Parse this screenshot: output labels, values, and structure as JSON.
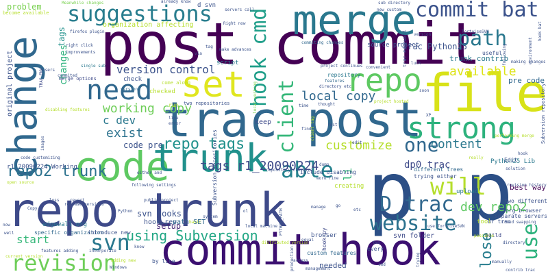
{
  "words": [
    {
      "text": "post commit",
      "color": "#440154"
    },
    {
      "text": "commit hook",
      "color": "#3b0f70"
    },
    {
      "text": "repo trunk",
      "color": "#3e4a89"
    },
    {
      "text": "trac post",
      "color": "#31688e"
    },
    {
      "text": "p p",
      "color": "#2c4f86"
    },
    {
      "text": "file",
      "color": "#d8e219"
    },
    {
      "text": "change",
      "color": "#30688e"
    },
    {
      "text": "merge",
      "color": "#2a788e"
    },
    {
      "text": "code",
      "color": "#5ec962"
    },
    {
      "text": "trunk",
      "color": "#21918c"
    },
    {
      "text": "suggestions",
      "color": "#287d8e"
    },
    {
      "text": "commit bat",
      "color": "#3b528b"
    },
    {
      "text": "set",
      "color": "#e0e61f"
    },
    {
      "text": "repo",
      "color": "#5ec962"
    },
    {
      "text": "strong",
      "color": "#2db27d"
    },
    {
      "text": "need",
      "color": "#31688e"
    },
    {
      "text": "website",
      "color": "#2c728e"
    },
    {
      "text": "revision",
      "color": "#6ece58"
    },
    {
      "text": "D trac",
      "color": "#31688e"
    },
    {
      "text": "hook cmd",
      "color": "#1f9e89"
    },
    {
      "text": "path",
      "color": "#2a788e"
    },
    {
      "text": "client",
      "color": "#35b779"
    },
    {
      "text": "svn",
      "color": "#2a788e"
    },
    {
      "text": "able",
      "color": "#26828e"
    },
    {
      "text": "will",
      "color": "#b5de2b"
    },
    {
      "text": "one",
      "color": "#31688e"
    },
    {
      "text": "use",
      "color": "#2db27d"
    },
    {
      "text": "lose",
      "color": "#287d8e"
    },
    {
      "text": "repo2 trunk",
      "color": "#2c728e"
    },
    {
      "text": "repo tags",
      "color": "#21918c"
    },
    {
      "text": "using Subversion",
      "color": "#22a785"
    },
    {
      "text": "working copy",
      "color": "#6ece58"
    },
    {
      "text": "local copy",
      "color": "#31688e"
    },
    {
      "text": "customize",
      "color": "#b5de2b"
    },
    {
      "text": "tags r1_20090224",
      "color": "#3e4a89"
    },
    {
      "text": "content",
      "color": "#2a788e"
    },
    {
      "text": "version control",
      "color": "#3b528b"
    },
    {
      "text": "available",
      "color": "#dde318"
    },
    {
      "text": "dev repo2",
      "color": "#5ec962"
    },
    {
      "text": "start",
      "color": "#35b779"
    },
    {
      "text": "c dev",
      "color": "#2a788e"
    },
    {
      "text": "exist",
      "color": "#2c728e"
    },
    {
      "text": "trac Python25",
      "color": "#3b528b"
    },
    {
      "text": "trunk contrib",
      "color": "#2a788e"
    },
    {
      "text": "code pre",
      "color": "#3b528b"
    },
    {
      "text": "dp0 trac",
      "color": "#3e4a89"
    },
    {
      "text": "tags",
      "color": "#21918c"
    },
    {
      "text": "changes",
      "color": "#2db27d"
    },
    {
      "text": "li",
      "color": "#35b779"
    },
    {
      "text": "pre code",
      "color": "#31688e"
    },
    {
      "text": "svn hooks",
      "color": "#3b528b"
    },
    {
      "text": "problem",
      "color": "#7ad151"
    },
    {
      "text": "Python25 Lib",
      "color": "#2a788e"
    },
    {
      "text": "organization affecting",
      "color": "#b5de2b"
    },
    {
      "text": "script",
      "color": "#2a788e"
    },
    {
      "text": "keep",
      "color": "#3e4a89"
    },
    {
      "text": "hook rev",
      "color": "#3b528b"
    },
    {
      "text": "path SET",
      "color": "#31688e"
    },
    {
      "text": "setup",
      "color": "#482878"
    },
    {
      "text": "svn folder",
      "color": "#3e4a89"
    },
    {
      "text": "edgewall org",
      "color": "#2a788e"
    },
    {
      "text": "specific organization",
      "color": "#31688e"
    },
    {
      "text": "introduce new",
      "color": "#3b528b"
    },
    {
      "text": "local working",
      "color": "#7ad151"
    },
    {
      "text": "source project",
      "color": "#3b528b"
    },
    {
      "text": "best way",
      "color": "#440154"
    },
    {
      "text": "separate servers",
      "color": "#3b528b"
    },
    {
      "text": "two different",
      "color": "#3b528b"
    },
    {
      "text": "repository",
      "color": "#2a788e"
    },
    {
      "text": "trying either",
      "color": "#3b528b"
    },
    {
      "text": "different trees",
      "color": "#31688e"
    },
    {
      "text": "include disabling",
      "color": "#3b528b"
    },
    {
      "text": "Subversion repositories",
      "color": "#3b528b"
    },
    {
      "text": "build",
      "color": "#3e4a89"
    },
    {
      "text": "upload",
      "color": "#2a788e"
    },
    {
      "text": "creating",
      "color": "#b5de2b"
    },
    {
      "text": "custom features",
      "color": "#31688e"
    },
    {
      "text": "needed",
      "color": "#3b528b"
    },
    {
      "text": "hook py",
      "color": "#3e4a89"
    },
    {
      "text": "browser",
      "color": "#3b528b"
    },
    {
      "text": "org browser",
      "color": "#3b528b"
    },
    {
      "text": "tried swapping",
      "color": "#3b528b"
    },
    {
      "text": "revision history",
      "color": "#3b528b"
    },
    {
      "text": "Edit",
      "color": "#3b528b"
    },
    {
      "text": "tool",
      "color": "#b5de2b"
    },
    {
      "text": "br trac",
      "color": "#3b528b"
    },
    {
      "text": "checked",
      "color": "#b5de2b"
    },
    {
      "text": "check",
      "color": "#3b528b"
    },
    {
      "text": "come along",
      "color": "#b5de2b"
    },
    {
      "text": "two repositories",
      "color": "#3b528b"
    },
    {
      "text": "version",
      "color": "#31688e"
    },
    {
      "text": "single sub",
      "color": "#2a788e"
    },
    {
      "text": "merge options",
      "color": "#3e4a89"
    },
    {
      "text": "improvements",
      "color": "#3b528b"
    },
    {
      "text": "right click",
      "color": "#3b528b"
    },
    {
      "text": "firefox plugin",
      "color": "#3b528b"
    },
    {
      "text": "Meanwhile changes",
      "color": "#7ad151"
    },
    {
      "text": "become available",
      "color": "#b5de2b"
    },
    {
      "text": "already know",
      "color": "#3b528b"
    },
    {
      "text": "servers call",
      "color": "#3b528b"
    },
    {
      "text": "sub directory",
      "color": "#3b528b"
    },
    {
      "text": "new custom",
      "color": "#3b528b"
    },
    {
      "text": "commiting changes",
      "color": "#31688e"
    },
    {
      "text": "d svn",
      "color": "#3b528b"
    },
    {
      "text": "Right now",
      "color": "#3b528b"
    },
    {
      "text": "via",
      "color": "#3b528b"
    },
    {
      "text": "make advances",
      "color": "#3b528b"
    },
    {
      "text": "project continues",
      "color": "#3b528b"
    },
    {
      "text": "convenient",
      "color": "#3b528b"
    },
    {
      "text": "features",
      "color": "#31688e"
    },
    {
      "text": "directory etc",
      "color": "#3b528b"
    },
    {
      "text": "thought",
      "color": "#3b528b"
    },
    {
      "text": "useful",
      "color": "#3b528b"
    },
    {
      "text": "following",
      "color": "#3b528b"
    },
    {
      "text": "making changes",
      "color": "#3b528b"
    },
    {
      "text": "hook bat",
      "color": "#3b528b"
    },
    {
      "text": "project hosted",
      "color": "#b5de2b"
    },
    {
      "text": "soon",
      "color": "#3b528b"
    },
    {
      "text": "luck",
      "color": "#3b528b"
    },
    {
      "text": "users",
      "color": "#3b528b"
    },
    {
      "text": "TRAC_ENV",
      "color": "#3e4a89"
    },
    {
      "text": "commited",
      "color": "#3b528b"
    },
    {
      "text": "original project",
      "color": "#3b528b"
    },
    {
      "text": "r1_20090224 Working",
      "color": "#3b528b"
    },
    {
      "text": "code customizing",
      "color": "#3b528b"
    },
    {
      "text": "images",
      "color": "#3b528b"
    },
    {
      "text": "open source",
      "color": "#b5de2b"
    },
    {
      "text": "release versions",
      "color": "#3b528b"
    },
    {
      "text": "loss",
      "color": "#3b528b"
    },
    {
      "text": "revert",
      "color": "#3b528b"
    },
    {
      "text": "Copy c",
      "color": "#3b528b"
    },
    {
      "text": "well",
      "color": "#3b528b"
    },
    {
      "text": "now",
      "color": "#3b528b"
    },
    {
      "text": "current version",
      "color": "#b5de2b"
    },
    {
      "text": "features adding",
      "color": "#3b528b"
    },
    {
      "text": "incorporate",
      "color": "#3b528b"
    },
    {
      "text": "adding new",
      "color": "#b5de2b"
    },
    {
      "text": "by line",
      "color": "#3b528b"
    },
    {
      "text": "Windows",
      "color": "#3b528b"
    },
    {
      "text": "know",
      "color": "#3b528b"
    },
    {
      "text": "system",
      "color": "#3b528b"
    },
    {
      "text": "li ol",
      "color": "#3b528b"
    },
    {
      "text": "basic",
      "color": "#b5de2b"
    },
    {
      "text": "local machine",
      "color": "#3b528b"
    },
    {
      "text": "distributed version",
      "color": "#b5de2b"
    },
    {
      "text": "PYTHON_PATH",
      "color": "#3b528b"
    },
    {
      "text": "production",
      "color": "#3b528b"
    },
    {
      "text": "access",
      "color": "#3b528b"
    },
    {
      "text": "management",
      "color": "#3b528b"
    },
    {
      "text": "equal",
      "color": "#3b528b"
    },
    {
      "text": "every",
      "color": "#3b528b"
    },
    {
      "text": "two",
      "color": "#3b528b"
    },
    {
      "text": "cmd",
      "color": "#3b528b"
    },
    {
      "text": "trying",
      "color": "#3b528b"
    },
    {
      "text": "possible",
      "color": "#b5de2b"
    },
    {
      "text": "contrib trac",
      "color": "#3b528b"
    },
    {
      "text": "manually",
      "color": "#3b528b"
    },
    {
      "text": "use TortoiseSVN",
      "color": "#3b528b"
    },
    {
      "text": "directory",
      "color": "#3b528b"
    },
    {
      "text": "go",
      "color": "#3b528b"
    },
    {
      "text": "manage",
      "color": "#3b528b"
    },
    {
      "text": "run",
      "color": "#b5de2b"
    },
    {
      "text": "line",
      "color": "#3b528b"
    },
    {
      "text": "error",
      "color": "#3b528b"
    },
    {
      "text": "either and",
      "color": "#3b528b"
    },
    {
      "text": "following settings",
      "color": "#3b528b"
    },
    {
      "text": "public project",
      "color": "#3b528b"
    },
    {
      "text": "Python",
      "color": "#3b528b"
    },
    {
      "text": "client tag",
      "color": "#b5de2b"
    },
    {
      "text": "find",
      "color": "#3b528b"
    },
    {
      "text": "rest",
      "color": "#3b528b"
    },
    {
      "text": "etc",
      "color": "#3b528b"
    },
    {
      "text": "environment",
      "color": "#3b528b"
    },
    {
      "text": "TortoiseSVN",
      "color": "#3b528b"
    },
    {
      "text": "Subversion repository",
      "color": "#3b528b"
    },
    {
      "text": "performing merge",
      "color": "#b5de2b"
    },
    {
      "text": "really",
      "color": "#b5de2b"
    },
    {
      "text": "solution",
      "color": "#3b528b"
    },
    {
      "text": "hook",
      "color": "#3b528b"
    },
    {
      "text": "time",
      "color": "#3b528b"
    },
    {
      "text": "disabling features",
      "color": "#b5de2b"
    },
    {
      "text": "tag",
      "color": "#3b528b"
    },
    {
      "text": "work fine",
      "color": "#3b528b"
    },
    {
      "text": "dump",
      "color": "#3b528b"
    },
    {
      "text": "edit",
      "color": "#3b528b"
    },
    {
      "text": "repository checking",
      "color": "#3b528b"
    },
    {
      "text": "trac edgewall",
      "color": "#3b528b"
    },
    {
      "text": "XP",
      "color": "#3b528b"
    },
    {
      "text": "version",
      "color": "#3b528b"
    }
  ]
}
